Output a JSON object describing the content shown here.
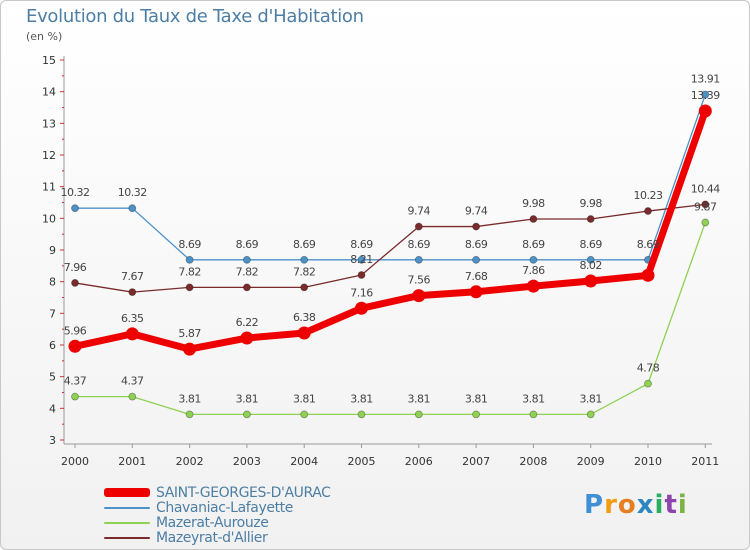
{
  "header": {
    "title": "Evolution du Taux de Taxe d'Habitation",
    "units": "(en %)"
  },
  "brand": {
    "letters": [
      "P",
      "r",
      "o",
      "x",
      "i",
      "t",
      "i"
    ],
    "colors": [
      "#3f8fd6",
      "#f39c12",
      "#e67e22",
      "#2e86c1",
      "#27ae60",
      "#8e44ad",
      "#7cb342"
    ]
  },
  "chart_data": {
    "type": "line",
    "title": "Evolution du Taux de Taxe d'Habitation",
    "ylabel": "(en %)",
    "xlabel": "",
    "ylim": [
      3,
      15
    ],
    "yticks": [
      "3",
      "4",
      "5",
      "6",
      "7",
      "8",
      "9",
      "10",
      "11",
      "12",
      "13",
      "14",
      "15"
    ],
    "x": [
      "2000",
      "2001",
      "2002",
      "2003",
      "2004",
      "2005",
      "2006",
      "2007",
      "2008",
      "2009",
      "2010",
      "2011"
    ],
    "grid": false,
    "legend_position": "bottom-left",
    "series": [
      {
        "name": "SAINT-GEORGES-D'AURAC",
        "color": "#ee0000",
        "style": "thick",
        "values": [
          5.96,
          6.35,
          5.87,
          6.22,
          6.38,
          7.16,
          7.56,
          7.68,
          7.86,
          8.02,
          8.2,
          13.39
        ],
        "labels": [
          "5.96",
          "6.35",
          "5.87",
          "6.22",
          "6.38",
          "7.16",
          "7.56",
          "7.68",
          "7.86",
          "8.02",
          "",
          "13.39"
        ]
      },
      {
        "name": "Chavaniac-Lafayette",
        "color": "#4b92c9",
        "style": "thin",
        "values": [
          10.32,
          10.32,
          8.69,
          8.69,
          8.69,
          8.69,
          8.69,
          8.69,
          8.69,
          8.69,
          8.69,
          13.91
        ],
        "labels": [
          "10.32",
          "10.32",
          "8.69",
          "8.69",
          "8.69",
          "8.69",
          "8.69",
          "8.69",
          "8.69",
          "8.69",
          "8.69",
          "13.91"
        ]
      },
      {
        "name": "Mazerat-Aurouze",
        "color": "#8ed153",
        "style": "thin",
        "values": [
          4.37,
          4.37,
          3.81,
          3.81,
          3.81,
          3.81,
          3.81,
          3.81,
          3.81,
          3.81,
          4.78,
          9.87
        ],
        "labels": [
          "4.37",
          "4.37",
          "3.81",
          "3.81",
          "3.81",
          "3.81",
          "3.81",
          "3.81",
          "3.81",
          "3.81",
          "4.78",
          "9.87"
        ]
      },
      {
        "name": "Mazeyrat-d'Allier",
        "color": "#7a2b2b",
        "style": "thin",
        "values": [
          7.96,
          7.67,
          7.82,
          7.82,
          7.82,
          8.21,
          9.74,
          9.74,
          9.98,
          9.98,
          10.23,
          10.44
        ],
        "labels": [
          "7.96",
          "7.67",
          "7.82",
          "7.82",
          "7.82",
          "8.21",
          "9.74",
          "9.74",
          "9.98",
          "9.98",
          "10.23",
          "10.44"
        ]
      }
    ]
  }
}
